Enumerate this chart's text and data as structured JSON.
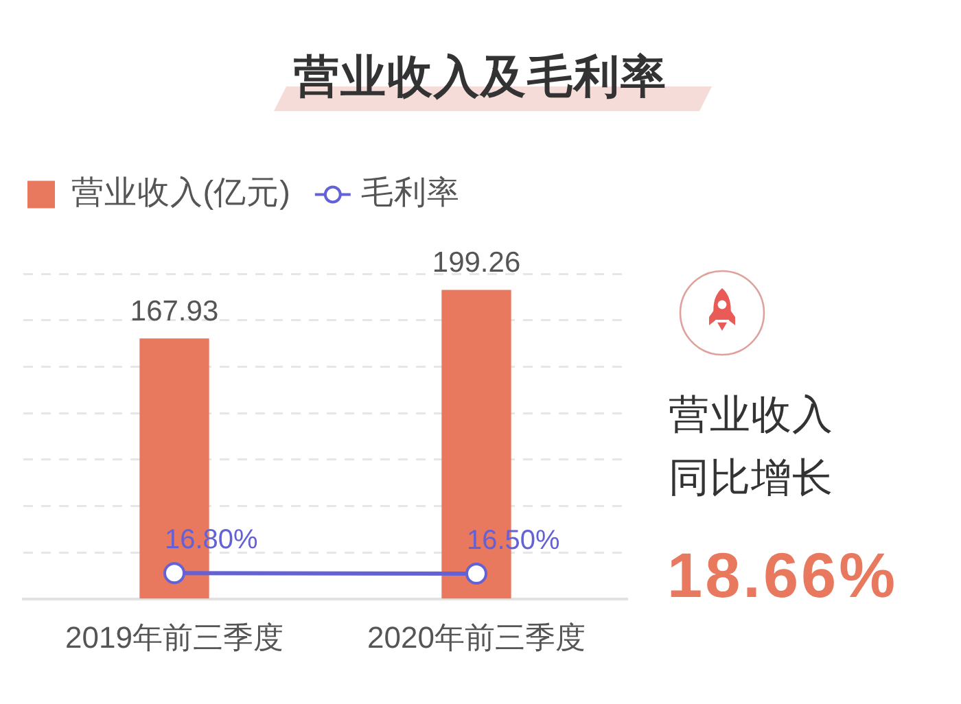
{
  "chart_data": {
    "type": "bar",
    "title": "营业收入及毛利率",
    "categories": [
      "2019年前三季度",
      "2020年前三季度"
    ],
    "series": [
      {
        "name": "营业收入(亿元)",
        "color": "#e8795f",
        "values": [
          167.93,
          199.26
        ],
        "value_labels": [
          "167.93",
          "199.26"
        ]
      },
      {
        "name": "毛利率",
        "type": "line",
        "color": "#6461d6",
        "values": [
          16.8,
          16.5
        ],
        "value_labels": [
          "16.80%",
          "16.50%"
        ]
      }
    ],
    "ylim": [
      0,
      210
    ],
    "yticks": [
      0,
      30,
      60,
      90,
      120,
      150,
      180,
      210
    ],
    "tick_labels": "x",
    "grid": "y",
    "legend": "top left",
    "marker": "circle",
    "annotations": [
      "营业收入同比增长",
      "18.66%"
    ]
  }
}
